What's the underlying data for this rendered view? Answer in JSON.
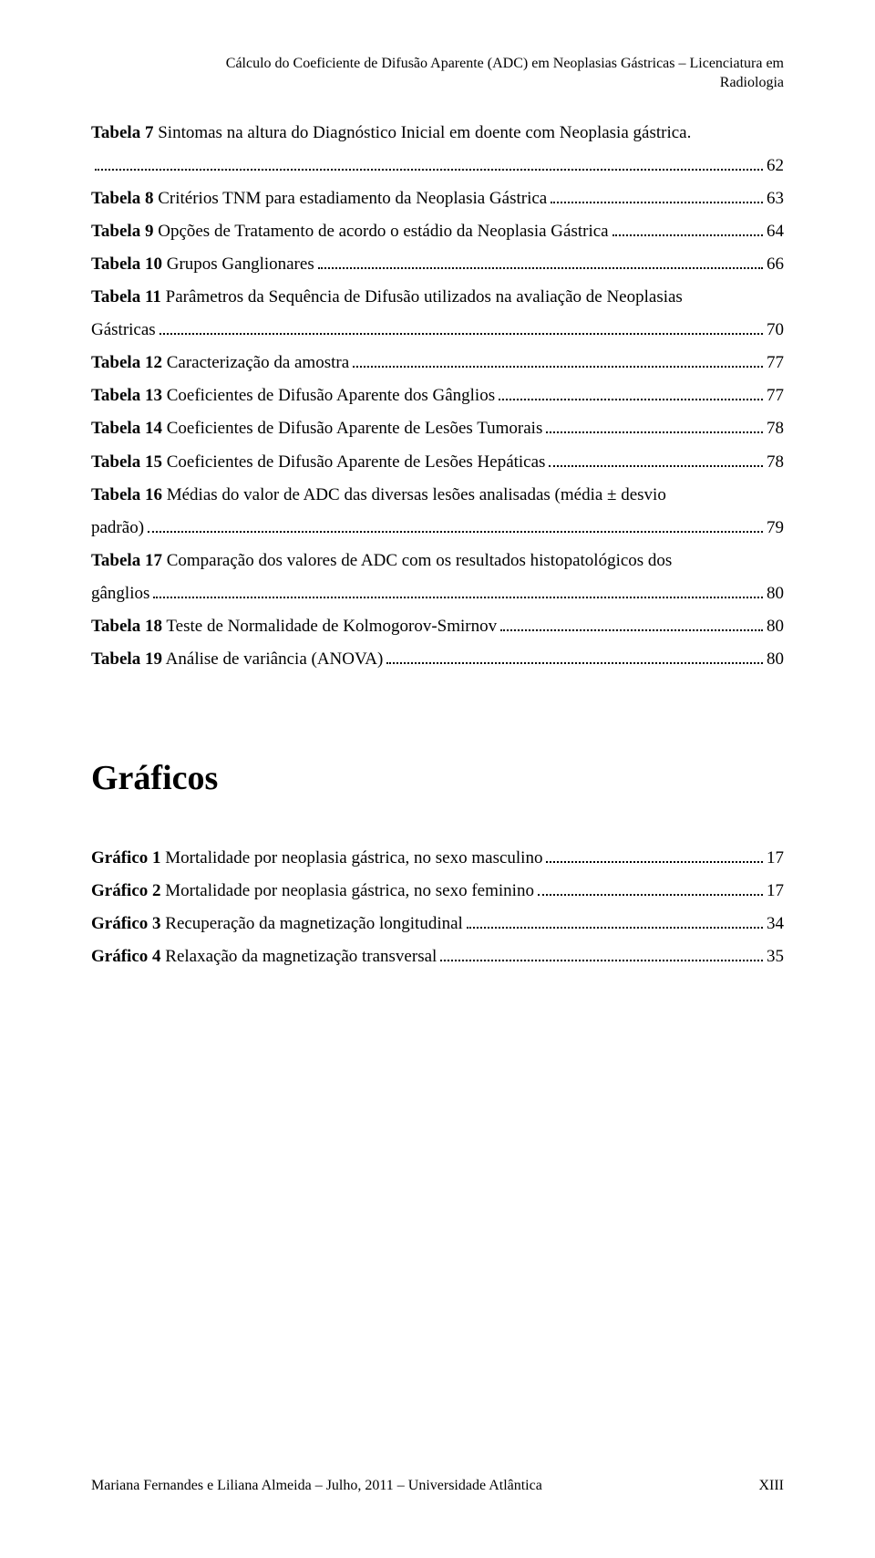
{
  "header": {
    "line1": "Cálculo do Coeficiente de Difusão Aparente (ADC) em Neoplasias Gástricas – Licenciatura em",
    "line2": "Radiologia"
  },
  "tables": [
    {
      "prefix": "Tabela 7",
      "text": " Sintomas na altura do Diagnóstico Inicial em doente com Neoplasia gástrica.",
      "page": "62",
      "multi": true
    },
    {
      "prefix": "Tabela 8",
      "text": " Critérios TNM para estadiamento da Neoplasia Gástrica",
      "page": "63"
    },
    {
      "prefix": "Tabela 9",
      "text": " Opções de Tratamento de acordo o estádio da Neoplasia Gástrica",
      "page": "64"
    },
    {
      "prefix": "Tabela 10",
      "text": " Grupos Ganglionares",
      "page": "66"
    },
    {
      "prefix": "Tabela 11",
      "text": " Parâmetros da Sequência de Difusão utilizados na avaliação de Neoplasias",
      "text2": "Gástricas",
      "page": "70",
      "twoLine": true
    },
    {
      "prefix": "Tabela 12",
      "text": " Caracterização da amostra",
      "page": "77"
    },
    {
      "prefix": "Tabela 13",
      "text": " Coeficientes de Difusão Aparente dos Gânglios",
      "page": "77"
    },
    {
      "prefix": "Tabela 14",
      "text": " Coeficientes de Difusão Aparente de Lesões Tumorais",
      "page": "78"
    },
    {
      "prefix": "Tabela 15",
      "text": " Coeficientes de Difusão Aparente de Lesões Hepáticas",
      "page": "78"
    },
    {
      "prefix": "Tabela 16",
      "text": " Médias do valor de ADC das diversas lesões analisadas (média ± desvio",
      "text2": "padrão)",
      "page": "79",
      "twoLine": true
    },
    {
      "prefix": "Tabela 17",
      "text": " Comparação dos valores de ADC com os resultados histopatológicos dos",
      "text2": "gânglios",
      "page": "80",
      "twoLine": true
    },
    {
      "prefix": "Tabela 18",
      "text": " Teste de Normalidade de Kolmogorov-Smirnov",
      "page": "80"
    },
    {
      "prefix": "Tabela 19",
      "text": " Análise de variância (ANOVA)",
      "page": "80"
    }
  ],
  "graficosHeading": "Gráficos",
  "graficos": [
    {
      "prefix": "Gráfico 1",
      "text": " Mortalidade por neoplasia gástrica, no sexo masculino",
      "page": "17"
    },
    {
      "prefix": "Gráfico 2",
      "text": " Mortalidade por neoplasia gástrica, no sexo feminino",
      "page": "17"
    },
    {
      "prefix": "Gráfico 3",
      "text": " Recuperação da magnetização longitudinal",
      "page": "34"
    },
    {
      "prefix": "Gráfico 4",
      "text": " Relaxação da magnetização transversal",
      "page": "35"
    }
  ],
  "footer": {
    "left": "Mariana Fernandes e Liliana Almeida – Julho, 2011 – Universidade Atlântica",
    "right": "XIII"
  }
}
